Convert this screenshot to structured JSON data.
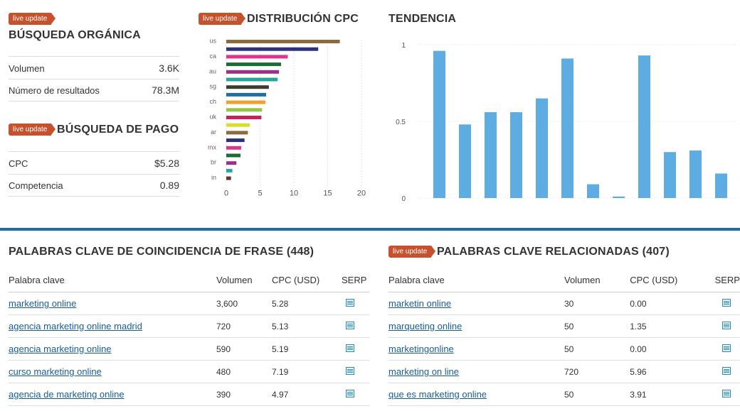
{
  "live_update_label": "live update",
  "organic": {
    "title": "BÚSQUEDA ORGÁNICA",
    "rows": [
      {
        "label": "Volumen",
        "value": "3.6K"
      },
      {
        "label": "Número de resultados",
        "value": "78.3M"
      }
    ]
  },
  "paid": {
    "title": "BÚSQUEDA DE PAGO",
    "rows": [
      {
        "label": "CPC",
        "value": "$5.28"
      },
      {
        "label": "Competencia",
        "value": "0.89"
      }
    ]
  },
  "chart_data": [
    {
      "type": "bar",
      "orientation": "horizontal",
      "title": "DISTRIBUCIÓN CPC",
      "categories": [
        "us",
        "ca",
        "au",
        "sg",
        "ch",
        "uk",
        "ar",
        "mx",
        "br",
        "in"
      ],
      "bars": [
        {
          "category": "us",
          "value": 16.8,
          "color": "#8c6a3c"
        },
        {
          "category": "",
          "value": 13.6,
          "color": "#2e2e7a"
        },
        {
          "category": "ca",
          "value": 9.1,
          "color": "#e0338a"
        },
        {
          "category": "",
          "value": 8.1,
          "color": "#1a6b35"
        },
        {
          "category": "au",
          "value": 7.8,
          "color": "#9b2f8e"
        },
        {
          "category": "",
          "value": 7.6,
          "color": "#25a69a"
        },
        {
          "category": "sg",
          "value": 6.3,
          "color": "#3d3d30"
        },
        {
          "category": "",
          "value": 5.9,
          "color": "#1f6fa3"
        },
        {
          "category": "ch",
          "value": 5.8,
          "color": "#f0a030"
        },
        {
          "category": "",
          "value": 5.3,
          "color": "#9ac34a"
        },
        {
          "category": "uk",
          "value": 5.2,
          "color": "#c0255e"
        },
        {
          "category": "",
          "value": 3.5,
          "color": "#d9de2e"
        },
        {
          "category": "ar",
          "value": 3.2,
          "color": "#8c6a3c"
        },
        {
          "category": "",
          "value": 2.7,
          "color": "#2e2e7a"
        },
        {
          "category": "mx",
          "value": 2.2,
          "color": "#e0338a"
        },
        {
          "category": "",
          "value": 2.1,
          "color": "#1a6b35"
        },
        {
          "category": "br",
          "value": 1.5,
          "color": "#9b2f8e"
        },
        {
          "category": "",
          "value": 0.9,
          "color": "#25a69a"
        },
        {
          "category": "in",
          "value": 0.7,
          "color": "#5a3a24"
        }
      ],
      "xticks": [
        0,
        5,
        10,
        15,
        20
      ],
      "xlim": [
        0,
        20
      ],
      "grid": true
    },
    {
      "type": "bar",
      "title": "TENDENCIA",
      "values": [
        0.96,
        0.48,
        0.56,
        0.56,
        0.65,
        0.91,
        0.09,
        0.01,
        0.93,
        0.3,
        0.31,
        0.16
      ],
      "yticks": [
        0,
        0.5,
        1
      ],
      "ylim": [
        0,
        1
      ],
      "color": "#5dade2",
      "grid": true
    }
  ],
  "phrase": {
    "title": "PALABRAS CLAVE DE COINCIDENCIA DE FRASE (448)",
    "headers": {
      "keyword": "Palabra clave",
      "volume": "Volumen",
      "cpc": "CPC (USD)",
      "serp": "SERP"
    },
    "rows": [
      {
        "keyword": "marketing online",
        "volume": "3,600",
        "cpc": "5.28"
      },
      {
        "keyword": "agencia marketing online madrid",
        "volume": "720",
        "cpc": "5.13"
      },
      {
        "keyword": "agencia marketing online",
        "volume": "590",
        "cpc": "5.19"
      },
      {
        "keyword": "curso marketing online",
        "volume": "480",
        "cpc": "7.19"
      },
      {
        "keyword": "agencia de marketing online",
        "volume": "390",
        "cpc": "4.97"
      }
    ]
  },
  "related": {
    "title": "PALABRAS CLAVE RELACIONADAS (407)",
    "headers": {
      "keyword": "Palabra clave",
      "volume": "Volumen",
      "cpc": "CPC (USD)",
      "serp": "SERP"
    },
    "rows": [
      {
        "keyword": "marketin online",
        "volume": "30",
        "cpc": "0.00"
      },
      {
        "keyword": "marqueting online",
        "volume": "50",
        "cpc": "1.35"
      },
      {
        "keyword": "marketingonline",
        "volume": "50",
        "cpc": "0.00"
      },
      {
        "keyword": "marketing on line",
        "volume": "720",
        "cpc": "5.96"
      },
      {
        "keyword": "que es marketing online",
        "volume": "50",
        "cpc": "3.91"
      }
    ]
  }
}
